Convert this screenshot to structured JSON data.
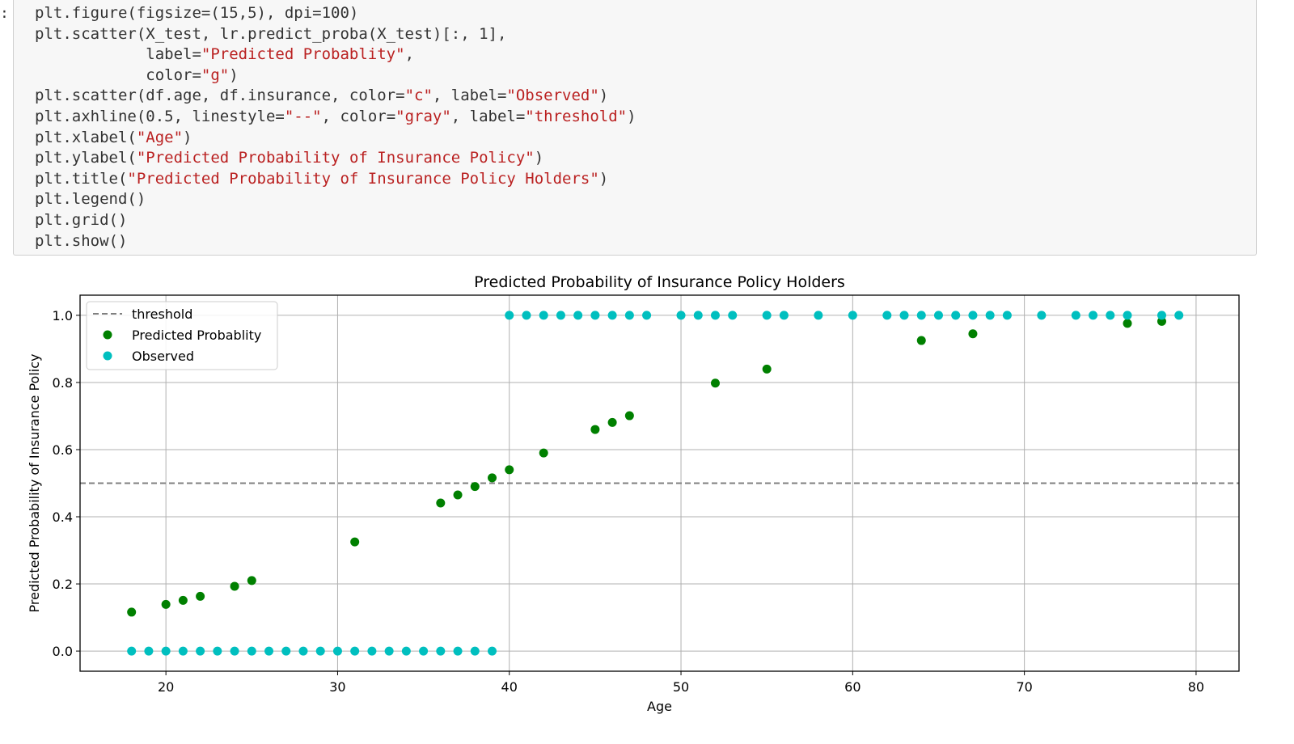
{
  "prompt_marker": ":",
  "code_lines": [
    [
      {
        "t": "plt.figure(figsize=(15,5), dpi=100)"
      }
    ],
    [
      {
        "t": "plt.scatter(X_test, lr.predict_proba(X_test)[:, 1],"
      }
    ],
    [
      {
        "t": "            label="
      },
      {
        "t": "\"Predicted Probablity\"",
        "c": "s"
      },
      {
        "t": ","
      }
    ],
    [
      {
        "t": "            color="
      },
      {
        "t": "\"g\"",
        "c": "s"
      },
      {
        "t": ")"
      }
    ],
    [
      {
        "t": "plt.scatter(df.age, df.insurance, color="
      },
      {
        "t": "\"c\"",
        "c": "s"
      },
      {
        "t": ", label="
      },
      {
        "t": "\"Observed\"",
        "c": "s"
      },
      {
        "t": ")"
      }
    ],
    [
      {
        "t": "plt.axhline(0.5, linestyle="
      },
      {
        "t": "\"--\"",
        "c": "s"
      },
      {
        "t": ", color="
      },
      {
        "t": "\"gray\"",
        "c": "s"
      },
      {
        "t": ", label="
      },
      {
        "t": "\"threshold\"",
        "c": "s"
      },
      {
        "t": ")"
      }
    ],
    [
      {
        "t": "plt.xlabel("
      },
      {
        "t": "\"Age\"",
        "c": "s"
      },
      {
        "t": ")"
      }
    ],
    [
      {
        "t": "plt.ylabel("
      },
      {
        "t": "\"Predicted Probability of Insurance Policy\"",
        "c": "s"
      },
      {
        "t": ")"
      }
    ],
    [
      {
        "t": "plt.title("
      },
      {
        "t": "\"Predicted Probability of Insurance Policy Holders\"",
        "c": "s"
      },
      {
        "t": ")"
      }
    ],
    [
      {
        "t": "plt.legend()"
      }
    ],
    [
      {
        "t": "plt.grid()"
      }
    ],
    [
      {
        "t": "plt.show()"
      }
    ]
  ],
  "chart_data": {
    "type": "scatter",
    "title": "Predicted Probability of Insurance Policy Holders",
    "xlabel": "Age",
    "ylabel": "Predicted Probability of Insurance Policy",
    "xlim": [
      15,
      82.5
    ],
    "ylim": [
      -0.06,
      1.06
    ],
    "xticks": [
      20,
      30,
      40,
      50,
      60,
      70,
      80
    ],
    "yticks": [
      0.0,
      0.2,
      0.4,
      0.6,
      0.8,
      1.0
    ],
    "ytick_labels": [
      "0.0",
      "0.2",
      "0.4",
      "0.6",
      "0.8",
      "1.0"
    ],
    "grid": true,
    "legend_position": "upper-left",
    "threshold": {
      "name": "threshold",
      "y": 0.5,
      "color": "#808080",
      "linestyle": "dashed"
    },
    "series": [
      {
        "name": "Predicted Probablity",
        "color": "#008000",
        "x": [
          18,
          20,
          21,
          22,
          24,
          25,
          31,
          36,
          37,
          38,
          39,
          40,
          42,
          45,
          46,
          47,
          52,
          55,
          64,
          67,
          76,
          78
        ],
        "y": [
          0.116,
          0.139,
          0.151,
          0.163,
          0.193,
          0.21,
          0.325,
          0.441,
          0.465,
          0.49,
          0.516,
          0.54,
          0.59,
          0.66,
          0.681,
          0.701,
          0.798,
          0.84,
          0.925,
          0.945,
          0.976,
          0.982
        ]
      },
      {
        "name": "Observed",
        "color": "#00bfbf",
        "x": [
          18,
          19,
          20,
          21,
          22,
          23,
          24,
          25,
          26,
          27,
          28,
          29,
          30,
          31,
          32,
          33,
          34,
          35,
          36,
          37,
          38,
          39,
          40,
          41,
          42,
          43,
          44,
          45,
          46,
          47,
          48,
          50,
          51,
          52,
          53,
          55,
          56,
          58,
          60,
          62,
          63,
          64,
          65,
          66,
          67,
          68,
          69,
          71,
          73,
          74,
          75,
          76,
          78,
          79
        ],
        "y": [
          0,
          0,
          0,
          0,
          0,
          0,
          0,
          0,
          0,
          0,
          0,
          0,
          0,
          0,
          0,
          0,
          0,
          0,
          0,
          0,
          0,
          0,
          1,
          1,
          1,
          1,
          1,
          1,
          1,
          1,
          1,
          1,
          1,
          1,
          1,
          1,
          1,
          1,
          1,
          1,
          1,
          1,
          1,
          1,
          1,
          1,
          1,
          1,
          1,
          1,
          1,
          1,
          1,
          1
        ]
      }
    ]
  }
}
